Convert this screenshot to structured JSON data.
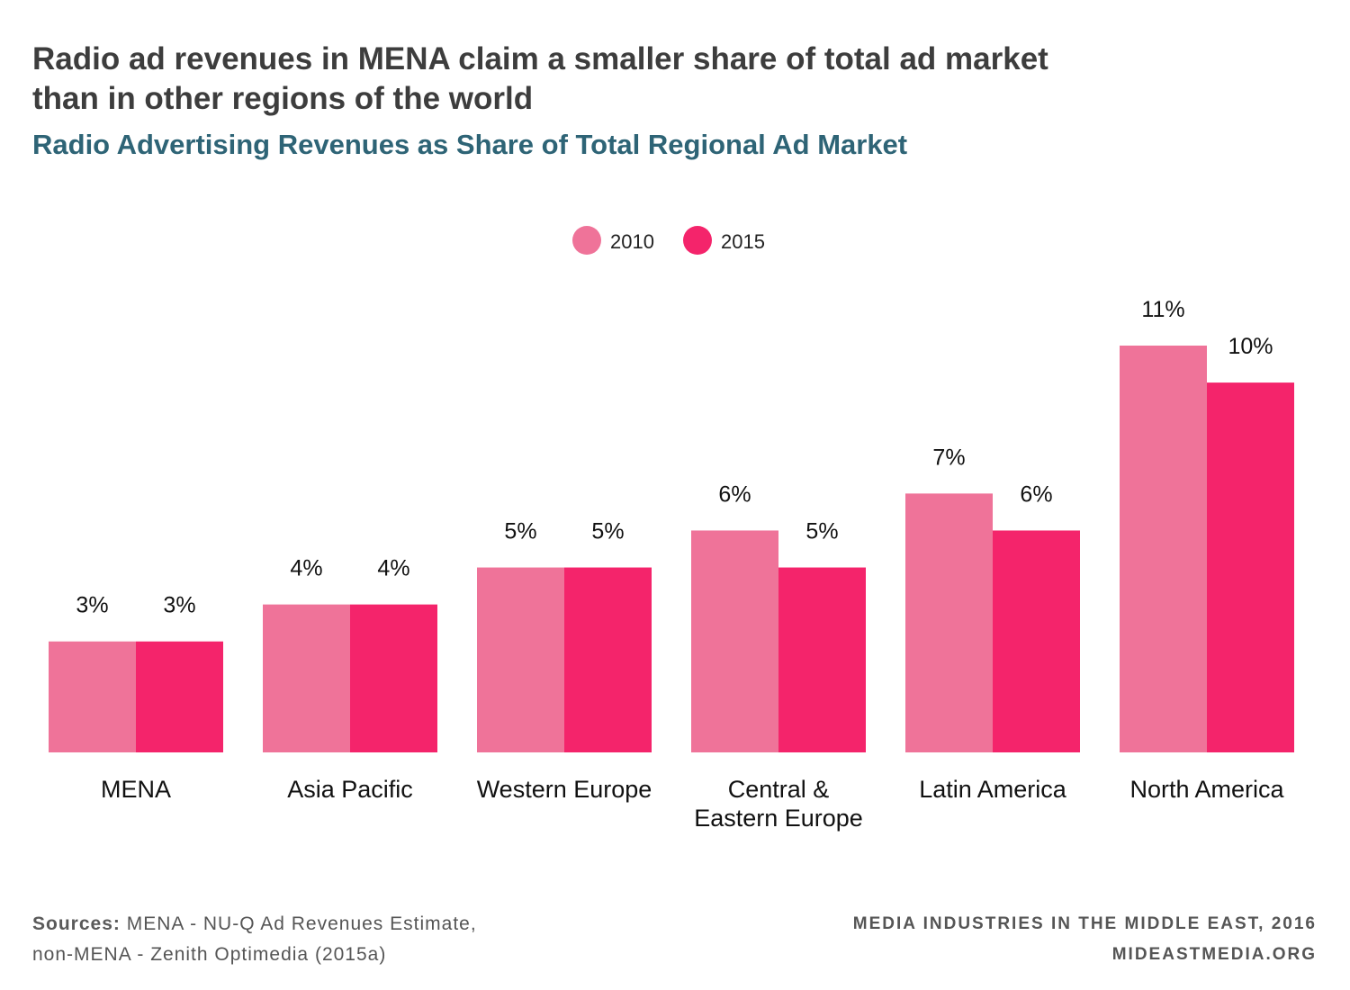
{
  "header": {
    "title_line1": "Radio ad revenues in MENA claim a smaller share of total ad market",
    "title_line2": "than in other regions of the world",
    "subtitle": "Radio Advertising Revenues as Share of Total Regional Ad Market"
  },
  "chart_data": {
    "type": "bar",
    "categories": [
      [
        "MENA"
      ],
      [
        "Asia Pacific"
      ],
      [
        "Western Europe"
      ],
      [
        "Central &",
        "Eastern Europe"
      ],
      [
        "Latin America"
      ],
      [
        "North America"
      ]
    ],
    "series": [
      {
        "name": "2010",
        "color": "#ef7399",
        "values": [
          3,
          4,
          5,
          6,
          7,
          11
        ],
        "labels": [
          "3%",
          "4%",
          "5%",
          "6%",
          "7%",
          "11%"
        ]
      },
      {
        "name": "2015",
        "color": "#f4246b",
        "values": [
          3,
          4,
          5,
          5,
          6,
          10
        ],
        "labels": [
          "3%",
          "4%",
          "5%",
          "5%",
          "6%",
          "10%"
        ]
      }
    ],
    "ylim": [
      0,
      11
    ],
    "grid": false,
    "legend_position": "top-center"
  },
  "footer": {
    "sources_label": "Sources:",
    "sources_line1": "MENA - NU-Q Ad Revenues Estimate,",
    "sources_line2": "non-MENA - Zenith Optimedia (2015a)",
    "credit_line1": "MEDIA INDUSTRIES IN THE MIDDLE EAST, 2016",
    "credit_line2": "MIDEASTMEDIA.ORG"
  }
}
